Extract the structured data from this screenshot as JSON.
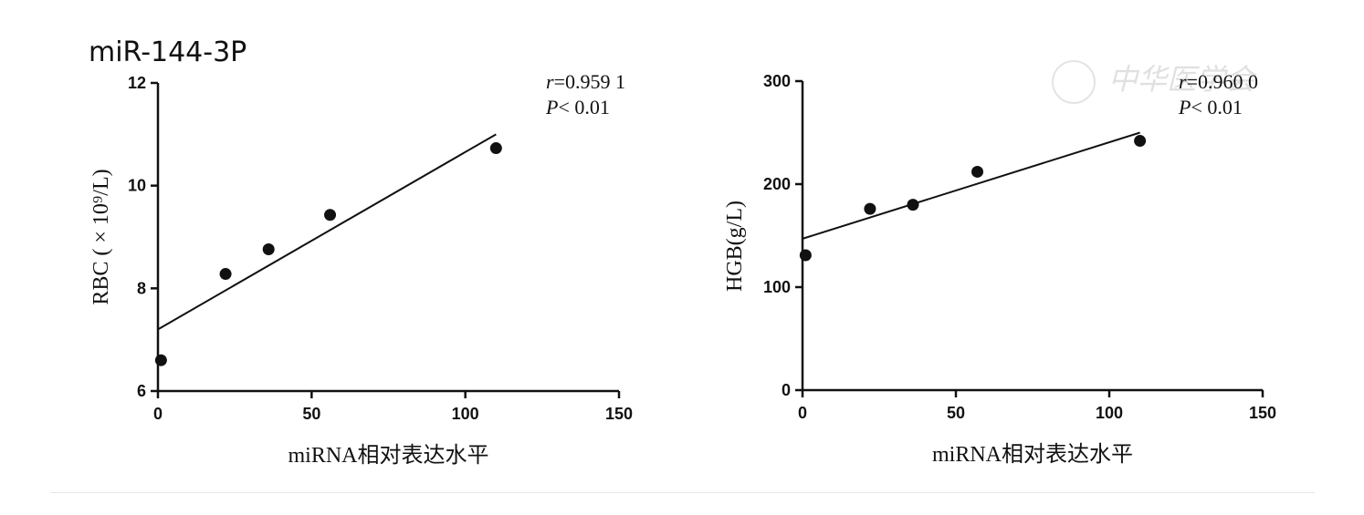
{
  "figure_label": "miR-144-3P",
  "watermark": "中华医学会",
  "chart_data": [
    {
      "type": "scatter",
      "xlabel": "miRNA相对表达水平",
      "ylabel": "RBC ( × 10⁹/L)",
      "xlim": [
        0,
        150
      ],
      "ylim": [
        6,
        12
      ],
      "xticks": [
        "0",
        "50",
        "100",
        "150"
      ],
      "yticks": [
        "6",
        "8",
        "10",
        "12"
      ],
      "x": [
        1,
        22,
        36,
        56,
        110
      ],
      "y": [
        6.6,
        8.28,
        8.76,
        9.43,
        10.73
      ],
      "fit_line": {
        "x": [
          0,
          110
        ],
        "y": [
          7.2,
          11.0
        ]
      },
      "stats": {
        "r_label": "r",
        "r_value": "=0.959 1",
        "p_label": "P",
        "p_value": "< 0.01"
      }
    },
    {
      "type": "scatter",
      "xlabel": "miRNA相对表达水平",
      "ylabel": "HGB(g/L)",
      "xlim": [
        0,
        150
      ],
      "ylim": [
        0,
        300
      ],
      "xticks": [
        "0",
        "50",
        "100",
        "150"
      ],
      "yticks": [
        "0",
        "100",
        "200",
        "300"
      ],
      "x": [
        1,
        22,
        36,
        57,
        110
      ],
      "y": [
        131,
        176,
        180,
        212,
        242
      ],
      "fit_line": {
        "x": [
          0,
          110
        ],
        "y": [
          147,
          250
        ]
      },
      "stats": {
        "r_label": "r",
        "r_value": "=0.960 0",
        "p_label": "P",
        "p_value": "< 0.01"
      }
    }
  ]
}
